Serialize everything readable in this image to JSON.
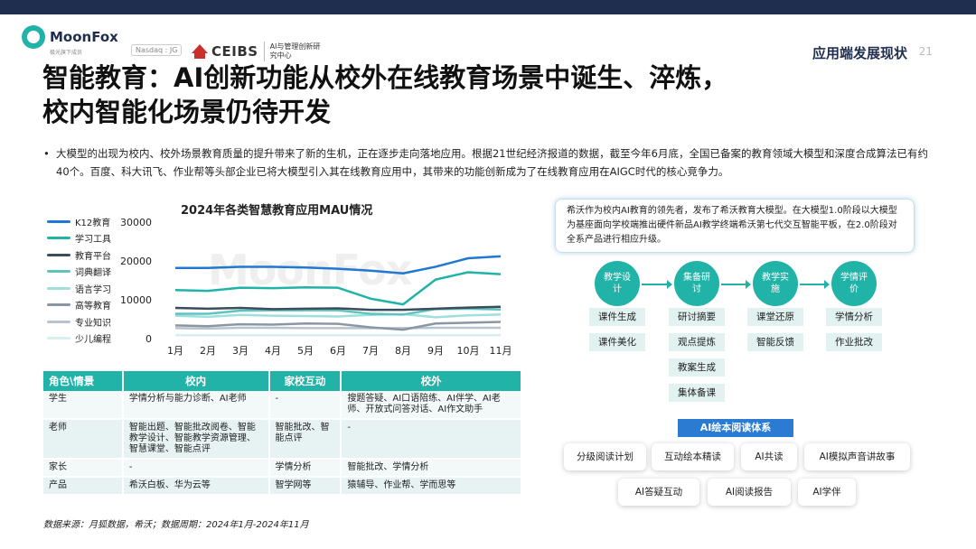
{
  "header": {
    "brand_name": "MoonFox",
    "brand_sub": "极光旗下成员",
    "nasdaq": "Nasdaq : JG",
    "ceibs_name": "CEIBS",
    "ceibs_sub": "AI与管理创新研究中心",
    "section_title": "应用端发展现状",
    "page_number": "21"
  },
  "title": {
    "line1": "智能教育：AI创新功能从校外在线教育场景中诞生、淬炼，",
    "line2": "校内智能化场景仍待开发"
  },
  "bullet": {
    "dot": "•",
    "text": "大模型的出现为校内、校外场景教育质量的提升带来了新的生机，正在逐步走向落地应用。根据21世纪经济报道的数据，截至今年6月底，全国已备案的教育领域大模型和深度合成算法已有约40个。百度、科大讯飞、作业帮等头部企业已将大模型引入其在线教育应用中，其带来的功能创新成为了在线教育应用在AIGC时代的核心竞争力。"
  },
  "watermark": "MoonFox",
  "chart_data": {
    "type": "line",
    "title": "2024年各类智慧教育应用MAU情况",
    "categories": [
      "1月",
      "2月",
      "3月",
      "4月",
      "5月",
      "6月",
      "7月",
      "8月",
      "9月",
      "10月",
      "11月"
    ],
    "ylim": [
      0,
      30000
    ],
    "yticks": [
      "0",
      "10000",
      "20000",
      "30000"
    ],
    "grid": false,
    "legend_position": "left",
    "series": [
      {
        "name": "K12教育",
        "color": "#1f78d1",
        "values": [
          18200,
          18200,
          18500,
          18500,
          18300,
          18000,
          17500,
          16800,
          18500,
          20700,
          21200
        ]
      },
      {
        "name": "学习工具",
        "color": "#22b3a8",
        "values": [
          12500,
          12300,
          13100,
          13000,
          13200,
          13100,
          10300,
          8800,
          15200,
          17100,
          16600
        ]
      },
      {
        "name": "教育平台",
        "color": "#3b4c5c",
        "values": [
          7900,
          7700,
          7900,
          7600,
          7700,
          7800,
          7400,
          7400,
          7700,
          8000,
          8200
        ]
      },
      {
        "name": "词典翻译",
        "color": "#5fc4c0",
        "values": [
          6400,
          6400,
          7200,
          7300,
          7300,
          7300,
          6400,
          6200,
          7600,
          7700,
          7500
        ]
      },
      {
        "name": "语言学习",
        "color": "#9fe0dc",
        "values": [
          5900,
          5600,
          6100,
          5900,
          5800,
          5700,
          6100,
          6300,
          5500,
          6000,
          6200
        ]
      },
      {
        "name": "高等教育",
        "color": "#8a97a3",
        "values": [
          3400,
          3200,
          3700,
          3600,
          3900,
          3800,
          2900,
          2300,
          3900,
          4100,
          4300
        ]
      },
      {
        "name": "专业知识",
        "color": "#b7c3cd",
        "values": [
          2700,
          2600,
          2800,
          2800,
          2700,
          2700,
          2700,
          2700,
          2800,
          2800,
          2800
        ]
      },
      {
        "name": "少儿编程",
        "color": "#d8eef0",
        "values": [
          900,
          900,
          900,
          900,
          900,
          900,
          900,
          900,
          900,
          900,
          900
        ]
      }
    ]
  },
  "table": {
    "headers": [
      "角色\\情景",
      "校内",
      "家校互动",
      "校外"
    ],
    "rows": [
      [
        "学生",
        "学情分析与能力诊断、AI老师",
        "-",
        "搜题答疑、AI口语陪练、AI伴学、AI老师、开放式问答对话、AI作文助手"
      ],
      [
        "老师",
        "智能出题、智能批改阅卷、智能教学设计、智能教学资源管理、智慧课堂、智能点评",
        "智能批改、智能点评",
        "-"
      ],
      [
        "家长",
        "-",
        "学情分析",
        "智能批改、学情分析"
      ],
      [
        "产品",
        "希沃白板、华为云等",
        "智学网等",
        "猿辅导、作业帮、学而思等"
      ]
    ]
  },
  "source": "数据来源：月狐数据，希沃；数据周期：2024年1月-2024年11月",
  "note": "希沃作为校内AI教育的领先者，发布了希沃教育大模型。在大模型1.0阶段以大模型为基座面向学校端推出硬件新品AI教学终端希沃第七代交互智能平板，在2.0阶段对全系产品进行相应升级。",
  "phases": [
    {
      "label": "教学设计",
      "features": [
        "课件生成",
        "课件美化"
      ]
    },
    {
      "label": "集备研讨",
      "features": [
        "研讨摘要",
        "观点提炼",
        "教案生成",
        "集体备课"
      ]
    },
    {
      "label": "教学实施",
      "features": [
        "课堂还原",
        "智能反馈"
      ]
    },
    {
      "label": "学情评价",
      "features": [
        "学情分析",
        "作业批改"
      ]
    }
  ],
  "reading": {
    "title": "AI绘本阅读体系",
    "row1": [
      "分级阅读计划",
      "互动绘本精读",
      "AI共读",
      "AI模拟声音讲故事"
    ],
    "row2": [
      "AI答疑互动",
      "AI阅读报告",
      "AI学伴"
    ]
  }
}
